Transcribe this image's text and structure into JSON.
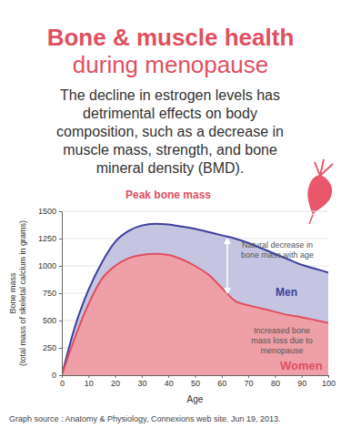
{
  "header": {
    "title": [
      "Bone & muscle health",
      "during menopause"
    ],
    "text": [
      "The decline in estrogen levels has",
      "detrimental effects on body",
      "composition, such as a decrease in",
      "muscle mass, strength, and bone",
      "mineral density (BMD)."
    ]
  },
  "chart_data": {
    "type": "area",
    "title": "Peak bone mass",
    "x_label": "Age",
    "y_label": [
      "Bone mass",
      "(total mass of skeletal calcium in grams)"
    ],
    "x": [
      0,
      5,
      10,
      15,
      20,
      25,
      30,
      35,
      40,
      45,
      50,
      55,
      60,
      65,
      70,
      75,
      80,
      85,
      90,
      95,
      100
    ],
    "series": [
      {
        "name": "Men",
        "color": "#3e3f9b",
        "values": [
          0,
          450,
          780,
          1030,
          1220,
          1320,
          1370,
          1385,
          1380,
          1360,
          1340,
          1310,
          1280,
          1250,
          1210,
          1160,
          1110,
          1060,
          1010,
          975,
          940
        ]
      },
      {
        "name": "Women",
        "color": "#e0505f",
        "values": [
          0,
          350,
          650,
          880,
          1000,
          1070,
          1100,
          1110,
          1100,
          1060,
          1000,
          920,
          800,
          680,
          640,
          610,
          580,
          550,
          530,
          505,
          480
        ]
      }
    ],
    "xlim": [
      0,
      100
    ],
    "xticks": [
      0,
      10,
      20,
      30,
      40,
      50,
      60,
      70,
      80,
      90,
      100
    ],
    "ylim": [
      0,
      1500
    ],
    "yticks": [
      0,
      250,
      500,
      750,
      1000,
      1250,
      1500
    ],
    "grid": true,
    "annotations": [
      {
        "text": [
          "Natural decrease in",
          "bone mass with age"
        ]
      },
      {
        "text": [
          "Increased bone",
          "mass loss due to",
          "menopause"
        ]
      }
    ]
  },
  "footer": {
    "source": "Graph source : Anatomy & Physiology, Connexions web site. Jun 19, 2013."
  }
}
